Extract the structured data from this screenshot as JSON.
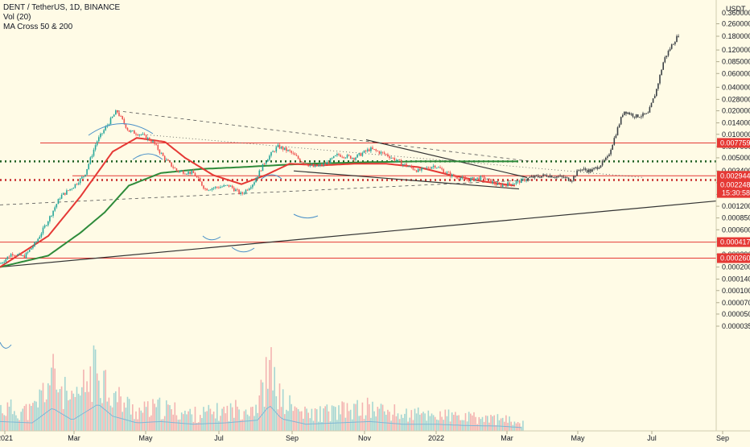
{
  "legend": {
    "title": "DENT / TetherUS, 1D, BINANCE",
    "volume": "Vol (20)",
    "ma": "MA Cross 50 & 200"
  },
  "currency_label": "USDT",
  "price_badges": [
    {
      "label": "0.007759",
      "color": "#e53935"
    },
    {
      "label": "0.002944",
      "color": "#e53935"
    },
    {
      "label": "0.002248",
      "color": "#e53935",
      "sub": "15:30:58"
    },
    {
      "label": "0.000417",
      "color": "#e53935"
    },
    {
      "label": "0.000260",
      "color": "#e53935"
    }
  ],
  "colors": {
    "up": "#26a69a",
    "down": "#ef5350",
    "ma50": "#e53935",
    "ma200": "#2e8b3a",
    "projection": "#131722",
    "support_red": "#e53935",
    "support_green": "#1b5e20",
    "volume_up": "#a5d6d2",
    "volume_down": "#f3b3b1"
  },
  "chart_data": {
    "type": "candlestick",
    "scale": "log",
    "price_ticks": [
      "0.260000",
      "0.180000",
      "0.120000",
      "0.085000",
      "0.060000",
      "0.040000",
      "0.028000",
      "0.020000",
      "0.014000",
      "0.010000",
      "0.007000",
      "0.005000",
      "0.003400",
      "0.002400",
      "0.001700",
      "0.001200",
      "0.000850",
      "0.000600",
      "0.000420",
      "0.000290",
      "0.000200",
      "0.000140",
      "0.000100",
      "0.000070",
      "0.000050",
      "0.000035"
    ],
    "top_tick_partial": "0.360000",
    "time_ticks": [
      "2021",
      "Mar",
      "May",
      "Jul",
      "Sep",
      "Nov",
      "2022",
      "Mar",
      "May",
      "Jul",
      "Sep"
    ],
    "horizontal_levels": [
      0.007759,
      0.002944,
      0.002248,
      0.000417,
      0.00026
    ],
    "dotted_levels": [
      {
        "value": 0.0045,
        "color": "green"
      },
      {
        "value": 0.0026,
        "color": "red"
      }
    ],
    "price_anchors": [
      [
        0,
        0.00022
      ],
      [
        15,
        0.0003
      ],
      [
        30,
        0.00027
      ],
      [
        45,
        0.00042
      ],
      [
        60,
        0.0008
      ],
      [
        75,
        0.0016
      ],
      [
        90,
        0.0021
      ],
      [
        105,
        0.003
      ],
      [
        120,
        0.008
      ],
      [
        135,
        0.014
      ],
      [
        145,
        0.02
      ],
      [
        160,
        0.011
      ],
      [
        175,
        0.01
      ],
      [
        190,
        0.008
      ],
      [
        205,
        0.0048
      ],
      [
        220,
        0.0034
      ],
      [
        240,
        0.0032
      ],
      [
        255,
        0.002
      ],
      [
        270,
        0.0021
      ],
      [
        285,
        0.0022
      ],
      [
        300,
        0.0017
      ],
      [
        315,
        0.0024
      ],
      [
        330,
        0.0046
      ],
      [
        345,
        0.007
      ],
      [
        360,
        0.006
      ],
      [
        375,
        0.0045
      ],
      [
        390,
        0.0038
      ],
      [
        405,
        0.0042
      ],
      [
        420,
        0.0055
      ],
      [
        440,
        0.005
      ],
      [
        460,
        0.0065
      ],
      [
        480,
        0.0055
      ],
      [
        500,
        0.0042
      ],
      [
        520,
        0.0034
      ],
      [
        540,
        0.004
      ],
      [
        560,
        0.003
      ],
      [
        580,
        0.0026
      ],
      [
        600,
        0.0028
      ],
      [
        620,
        0.0022
      ],
      [
        640,
        0.0024
      ],
      [
        660,
        0.0028
      ],
      [
        680,
        0.003
      ],
      [
        700,
        0.0028
      ],
      [
        710,
        0.0026
      ],
      [
        720,
        0.0036
      ],
      [
        735,
        0.0034
      ],
      [
        745,
        0.004
      ],
      [
        755,
        0.005
      ],
      [
        765,
        0.01
      ],
      [
        775,
        0.02
      ],
      [
        790,
        0.017
      ],
      [
        805,
        0.018
      ],
      [
        815,
        0.035
      ],
      [
        825,
        0.09
      ],
      [
        835,
        0.14
      ],
      [
        845,
        0.2
      ]
    ],
    "ma50_anchors": [
      [
        0,
        0.0002
      ],
      [
        60,
        0.0005
      ],
      [
        100,
        0.0016
      ],
      [
        140,
        0.006
      ],
      [
        170,
        0.009
      ],
      [
        205,
        0.008
      ],
      [
        230,
        0.005
      ],
      [
        265,
        0.003
      ],
      [
        300,
        0.0023
      ],
      [
        330,
        0.003
      ],
      [
        360,
        0.0042
      ],
      [
        400,
        0.004
      ],
      [
        440,
        0.0042
      ],
      [
        480,
        0.0042
      ],
      [
        520,
        0.0038
      ],
      [
        560,
        0.003
      ],
      [
        600,
        0.0025
      ],
      [
        640,
        0.0022
      ]
    ],
    "ma200_anchors": [
      [
        0,
        0.0002
      ],
      [
        60,
        0.00028
      ],
      [
        100,
        0.00055
      ],
      [
        130,
        0.001
      ],
      [
        160,
        0.0022
      ],
      [
        200,
        0.0032
      ],
      [
        250,
        0.0036
      ],
      [
        300,
        0.0038
      ],
      [
        340,
        0.004
      ],
      [
        380,
        0.0042
      ],
      [
        420,
        0.0043
      ],
      [
        460,
        0.0044
      ],
      [
        520,
        0.0045
      ],
      [
        580,
        0.0045
      ],
      [
        645,
        0.0045
      ]
    ],
    "trend_lines": [
      {
        "style": "solid",
        "x1": 0,
        "p1": 0.0002,
        "x2": 890,
        "p2": 0.0014
      },
      {
        "style": "dashed",
        "x1": 0,
        "p1": 0.00125,
        "x2": 660,
        "p2": 0.0026
      },
      {
        "style": "dashed",
        "x1": 145,
        "p1": 0.02,
        "x2": 660,
        "p2": 0.0045
      },
      {
        "style": "dotted",
        "x1": 175,
        "p1": 0.01,
        "x2": 800,
        "p2": 0.0028
      },
      {
        "style": "solid",
        "x1": 455,
        "p1": 0.0085,
        "x2": 655,
        "p2": 0.0028
      },
      {
        "style": "solid",
        "x1": 365,
        "p1": 0.0034,
        "x2": 645,
        "p2": 0.002
      }
    ],
    "volume_anchors": [
      [
        0,
        0.35
      ],
      [
        40,
        0.3
      ],
      [
        65,
        0.85
      ],
      [
        90,
        0.4
      ],
      [
        122,
        1.0
      ],
      [
        140,
        0.55
      ],
      [
        170,
        0.3
      ],
      [
        200,
        0.35
      ],
      [
        240,
        0.25
      ],
      [
        280,
        0.3
      ],
      [
        320,
        0.4
      ],
      [
        335,
        0.95
      ],
      [
        350,
        0.45
      ],
      [
        380,
        0.25
      ],
      [
        420,
        0.3
      ],
      [
        460,
        0.35
      ],
      [
        500,
        0.25
      ],
      [
        540,
        0.25
      ],
      [
        580,
        0.2
      ],
      [
        620,
        0.18
      ],
      [
        650,
        0.12
      ]
    ]
  }
}
